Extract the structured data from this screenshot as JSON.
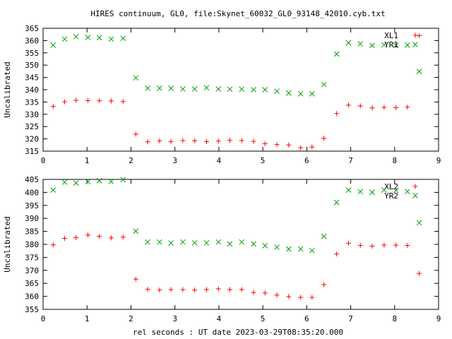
{
  "title": "HIRES continuum, GL0, file:Skynet_60032_GL0_93148_42010.cyb.txt",
  "xlabel": "rel seconds : UT date 2023-03-29T08:35:20.000",
  "colors": {
    "red": "#ff0000",
    "green": "#00a000"
  },
  "chart_data": [
    {
      "type": "scatter",
      "ylabel": "Uncalibrated",
      "xlim": [
        0,
        9
      ],
      "ylim": [
        315,
        365
      ],
      "xticks": [
        0,
        1,
        2,
        3,
        4,
        5,
        6,
        7,
        8,
        9
      ],
      "yticks": [
        315,
        320,
        325,
        330,
        335,
        340,
        345,
        350,
        355,
        360,
        365
      ],
      "legend": "top-right",
      "series": [
        {
          "name": "XL1",
          "marker": "plus",
          "color": "#ff0000",
          "x": [
            0.23,
            0.49,
            0.75,
            1.02,
            1.28,
            1.55,
            1.82,
            2.11,
            2.38,
            2.65,
            2.91,
            3.18,
            3.45,
            3.72,
            3.99,
            4.25,
            4.52,
            4.79,
            5.05,
            5.32,
            5.59,
            5.86,
            6.12,
            6.39,
            6.68,
            6.95,
            7.22,
            7.49,
            7.76,
            8.03,
            8.29,
            8.56
          ],
          "y": [
            333.2,
            335.1,
            335.7,
            335.6,
            335.5,
            335.4,
            335.2,
            321.9,
            318.8,
            319.2,
            318.9,
            319.3,
            319.2,
            318.9,
            319.1,
            319.4,
            319.3,
            319.0,
            318.0,
            317.7,
            317.5,
            316.4,
            316.7,
            320.2,
            330.3,
            333.7,
            333.4,
            332.6,
            332.8,
            332.7,
            332.9,
            362.0
          ]
        },
        {
          "name": "YR1",
          "marker": "cross",
          "color": "#00a000",
          "x": [
            0.23,
            0.49,
            0.75,
            1.02,
            1.28,
            1.55,
            1.82,
            2.11,
            2.38,
            2.65,
            2.91,
            3.18,
            3.45,
            3.72,
            3.99,
            4.25,
            4.52,
            4.79,
            5.05,
            5.32,
            5.59,
            5.86,
            6.12,
            6.39,
            6.68,
            6.95,
            7.22,
            7.49,
            7.76,
            8.03,
            8.29,
            8.56
          ],
          "y": [
            358.1,
            360.6,
            361.6,
            361.3,
            361.2,
            360.6,
            360.9,
            344.8,
            340.6,
            340.6,
            340.6,
            340.3,
            340.3,
            340.8,
            340.3,
            340.2,
            340.2,
            340.0,
            340.0,
            339.4,
            338.6,
            338.3,
            338.3,
            342.1,
            354.5,
            359.1,
            358.7,
            358.0,
            358.3,
            358.1,
            358.1,
            347.4
          ]
        }
      ]
    },
    {
      "type": "scatter",
      "ylabel": "Uncalibrated",
      "xlim": [
        0,
        9
      ],
      "ylim": [
        355,
        405
      ],
      "xticks": [
        0,
        1,
        2,
        3,
        4,
        5,
        6,
        7,
        8,
        9
      ],
      "yticks": [
        355,
        360,
        365,
        370,
        375,
        380,
        385,
        390,
        395,
        400,
        405
      ],
      "legend": "top-right",
      "series": [
        {
          "name": "XL2",
          "marker": "plus",
          "color": "#ff0000",
          "x": [
            0.23,
            0.49,
            0.75,
            1.02,
            1.28,
            1.55,
            1.82,
            2.11,
            2.38,
            2.65,
            2.91,
            3.18,
            3.45,
            3.72,
            3.99,
            4.25,
            4.52,
            4.79,
            5.05,
            5.32,
            5.59,
            5.86,
            6.12,
            6.39,
            6.68,
            6.95,
            7.22,
            7.49,
            7.76,
            8.03,
            8.29,
            8.56
          ],
          "y": [
            379.8,
            382.3,
            382.6,
            383.6,
            383.1,
            382.5,
            382.8,
            366.6,
            362.7,
            362.4,
            362.6,
            362.6,
            362.4,
            362.6,
            362.9,
            362.6,
            362.6,
            361.5,
            361.3,
            360.5,
            359.9,
            359.6,
            359.6,
            364.5,
            376.3,
            380.4,
            379.6,
            379.3,
            379.7,
            379.7,
            379.6,
            368.8
          ]
        },
        {
          "name": "YR2",
          "marker": "cross",
          "color": "#00a000",
          "x": [
            0.23,
            0.49,
            0.75,
            1.02,
            1.28,
            1.55,
            1.82,
            2.11,
            2.38,
            2.65,
            2.91,
            3.18,
            3.45,
            3.72,
            3.99,
            4.25,
            4.52,
            4.79,
            5.05,
            5.32,
            5.59,
            5.86,
            6.12,
            6.39,
            6.68,
            6.95,
            7.22,
            7.49,
            7.76,
            8.03,
            8.29,
            8.56
          ],
          "y": [
            400.9,
            403.9,
            403.6,
            404.1,
            404.5,
            404.2,
            404.9,
            385.1,
            380.9,
            380.9,
            380.5,
            380.9,
            380.6,
            380.6,
            380.9,
            380.2,
            380.9,
            380.2,
            379.5,
            378.9,
            378.2,
            378.2,
            377.6,
            383.1,
            396.1,
            400.9,
            400.3,
            400.0,
            400.9,
            400.7,
            400.3,
            388.3
          ]
        }
      ]
    }
  ]
}
